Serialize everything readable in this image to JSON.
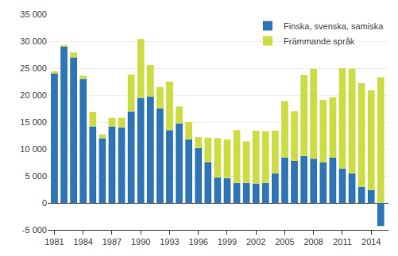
{
  "chart_data": {
    "type": "bar",
    "stacked": true,
    "x": [
      1981,
      1982,
      1983,
      1984,
      1985,
      1986,
      1987,
      1988,
      1989,
      1990,
      1991,
      1992,
      1993,
      1994,
      1995,
      1996,
      1997,
      1998,
      1999,
      2000,
      2001,
      2002,
      2003,
      2004,
      2005,
      2006,
      2007,
      2008,
      2009,
      2010,
      2011,
      2012,
      2013,
      2014,
      2015
    ],
    "series": [
      {
        "name": "Finska, svenska, samiska",
        "color": "#2E75B6",
        "values": [
          24000,
          29000,
          27000,
          23000,
          14200,
          12000,
          14200,
          14000,
          17000,
          19500,
          19700,
          17500,
          13500,
          14700,
          11800,
          10200,
          7500,
          4700,
          4600,
          3700,
          3700,
          3600,
          3700,
          5500,
          8400,
          7800,
          8700,
          8200,
          7500,
          8400,
          6400,
          5500,
          3000,
          2400,
          -4300
        ]
      },
      {
        "name": "Främmande språk",
        "color": "#CCDD44",
        "values": [
          400,
          200,
          900,
          600,
          2700,
          700,
          1600,
          1800,
          6800,
          10900,
          5900,
          4000,
          9000,
          3200,
          3200,
          2000,
          4600,
          7300,
          7200,
          9800,
          7700,
          9800,
          9600,
          7900,
          10500,
          9200,
          15000,
          16700,
          11600,
          11200,
          18600,
          19400,
          19200,
          18500,
          23300
        ]
      }
    ],
    "xlim": [
      1980.3,
      2015.8
    ],
    "xticks": [
      1981,
      1984,
      1987,
      1990,
      1993,
      1996,
      1999,
      2002,
      2005,
      2008,
      2011,
      2014
    ],
    "ylim": [
      -5000,
      35000
    ],
    "yticks": [
      {
        "value": -5000,
        "label": "-5 000"
      },
      0,
      {
        "value": 5000,
        "label": "5 000"
      },
      {
        "value": 10000,
        "label": "10 000"
      },
      {
        "value": 15000,
        "label": "15 000"
      },
      {
        "value": 20000,
        "label": "20 000"
      },
      {
        "value": 25000,
        "label": "25 000"
      },
      {
        "value": 30000,
        "label": "30 000"
      },
      {
        "value": 35000,
        "label": "35 000"
      }
    ],
    "grid": true,
    "legend": "upper right"
  }
}
